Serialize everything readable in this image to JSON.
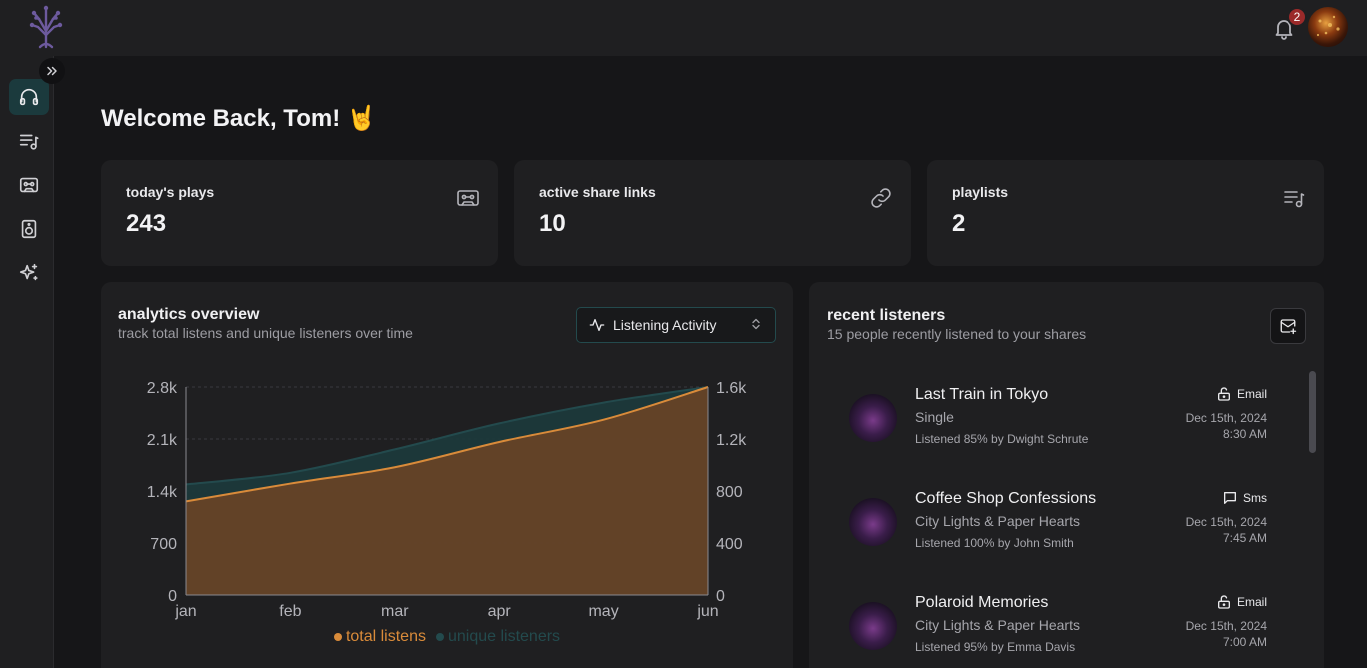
{
  "user": {
    "notification_count": "2"
  },
  "welcome": {
    "text": "Welcome Back, Tom! 🤘"
  },
  "nav": {
    "items": [
      {
        "name": "listen",
        "icon": "headphones-icon",
        "active": true
      },
      {
        "name": "playlists",
        "icon": "playlist-icon"
      },
      {
        "name": "cassette",
        "icon": "cassette-icon"
      },
      {
        "name": "speaker",
        "icon": "speaker-icon"
      },
      {
        "name": "sparkles",
        "icon": "sparkles-icon"
      }
    ]
  },
  "stats": [
    {
      "label": "today's plays",
      "value": "243",
      "icon": "cassette-icon"
    },
    {
      "label": "active share links",
      "value": "10",
      "icon": "link-icon"
    },
    {
      "label": "playlists",
      "value": "2",
      "icon": "playlist-icon"
    }
  ],
  "analytics": {
    "title": "analytics overview",
    "subtitle": "track total listens and unique listeners over time",
    "select_label": "Listening Activity"
  },
  "chart_data": {
    "type": "area",
    "categories": [
      "jan",
      "feb",
      "mar",
      "apr",
      "may",
      "jun"
    ],
    "series": [
      {
        "name": "total listens",
        "axis": "left",
        "values": [
          1260,
          1500,
          1720,
          2060,
          2360,
          2800
        ],
        "color": "#d98b3a"
      },
      {
        "name": "unique listeners",
        "axis": "right",
        "values": [
          850,
          940,
          1120,
          1320,
          1480,
          1600
        ],
        "color": "#234a4d"
      }
    ],
    "left_axis": {
      "ticks": [
        "0",
        "700",
        "1.4k",
        "2.1k",
        "2.8k"
      ],
      "range": [
        0,
        2800
      ]
    },
    "right_axis": {
      "ticks": [
        "0",
        "400",
        "800",
        "1.2k",
        "1.6k"
      ],
      "range": [
        0,
        1600
      ]
    },
    "legend": [
      "total listens",
      "unique listeners"
    ]
  },
  "recent": {
    "title": "recent listeners",
    "subtitle": "15 people recently listened to your shares",
    "items": [
      {
        "title": "Last Train in Tokyo",
        "sub": "Single",
        "meta": "Listened 85% by Dwight Schrute",
        "channel": "Email",
        "channel_icon": "lock-open-icon",
        "date": "Dec 15th, 2024",
        "time": "8:30 AM"
      },
      {
        "title": "Coffee Shop Confessions",
        "sub": "City Lights & Paper Hearts",
        "meta": "Listened 100% by John Smith",
        "channel": "Sms",
        "channel_icon": "chat-icon",
        "date": "Dec 15th, 2024",
        "time": "7:45 AM"
      },
      {
        "title": "Polaroid Memories",
        "sub": "City Lights & Paper Hearts",
        "meta": "Listened 95% by Emma Davis",
        "channel": "Email",
        "channel_icon": "lock-open-icon",
        "date": "Dec 15th, 2024",
        "time": "7:00 AM"
      }
    ]
  }
}
